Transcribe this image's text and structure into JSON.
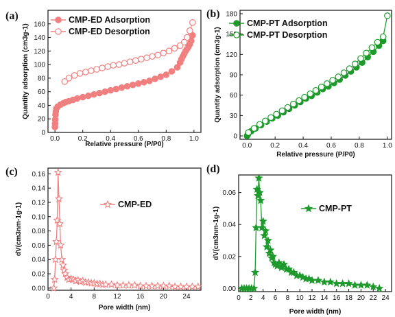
{
  "colors": {
    "ed": "#f08080",
    "pt": "#1e9a2c",
    "axis": "#111111"
  },
  "chart_data": [
    {
      "type": "line",
      "panel_label": "(a)",
      "xlabel": "Relative pressure (P/P0)",
      "ylabel": "Quantity adsorption (cm3g-1)",
      "xlim": [
        -0.05,
        1.05
      ],
      "ylim": [
        0,
        180
      ],
      "xticks": [
        0.0,
        0.2,
        0.4,
        0.6,
        0.8,
        1.0
      ],
      "yticks": [
        0,
        20,
        40,
        60,
        80,
        100,
        120,
        140,
        160
      ],
      "series": [
        {
          "name": "CMP-ED  Adsorption",
          "marker": "circle-filled",
          "x": [
            0.0,
            0.001,
            0.002,
            0.004,
            0.006,
            0.01,
            0.02,
            0.04,
            0.06,
            0.08,
            0.1,
            0.13,
            0.16,
            0.2,
            0.24,
            0.28,
            0.32,
            0.36,
            0.4,
            0.44,
            0.48,
            0.52,
            0.56,
            0.6,
            0.64,
            0.68,
            0.72,
            0.76,
            0.8,
            0.84,
            0.88,
            0.9,
            0.91,
            0.92,
            0.93,
            0.94,
            0.95,
            0.96,
            0.97,
            0.98,
            0.99
          ],
          "y": [
            8,
            13,
            19,
            26,
            31,
            35,
            38,
            41,
            43,
            45,
            46,
            48,
            50,
            52,
            54,
            56,
            58,
            60,
            62,
            64,
            66,
            68,
            70,
            72,
            74,
            76,
            79,
            82,
            85,
            90,
            96,
            103,
            108,
            112,
            116,
            120,
            123,
            126,
            130,
            135,
            143
          ]
        },
        {
          "name": "CMP-ED  Desorption",
          "marker": "circle-open",
          "x": [
            0.99,
            0.97,
            0.95,
            0.93,
            0.9,
            0.86,
            0.82,
            0.78,
            0.74,
            0.7,
            0.66,
            0.62,
            0.58,
            0.54,
            0.5,
            0.46,
            0.42,
            0.38,
            0.34,
            0.3,
            0.26,
            0.22,
            0.18,
            0.14,
            0.1,
            0.07
          ],
          "y": [
            162,
            150,
            140,
            133,
            128,
            124,
            120,
            117,
            114,
            112,
            110,
            108,
            106,
            104,
            102,
            100,
            99,
            97,
            95,
            93,
            91,
            89,
            87,
            84,
            80,
            75
          ]
        }
      ]
    },
    {
      "type": "line",
      "panel_label": "(b)",
      "xlabel": "Relative pressure (P/P0)",
      "ylabel": "Quantity adsorption (cm3g-1)",
      "xlim": [
        -0.05,
        1.03
      ],
      "ylim": [
        -5,
        185
      ],
      "xticks": [
        0.0,
        0.2,
        0.4,
        0.6,
        0.8,
        1.0
      ],
      "yticks": [
        0,
        30,
        60,
        90,
        120,
        150,
        180
      ],
      "series": [
        {
          "name": "CMP-PT  Adsorption",
          "marker": "circle-filled",
          "x": [
            0.0,
            0.005,
            0.01,
            0.03,
            0.06,
            0.1,
            0.14,
            0.18,
            0.22,
            0.26,
            0.3,
            0.34,
            0.38,
            0.42,
            0.46,
            0.5,
            0.54,
            0.58,
            0.62,
            0.66,
            0.7,
            0.74,
            0.78,
            0.82,
            0.86,
            0.9,
            0.94,
            0.97
          ],
          "y": [
            0,
            2,
            4,
            7,
            11,
            16,
            21,
            26,
            30,
            35,
            40,
            45,
            50,
            55,
            59,
            64,
            69,
            73,
            78,
            83,
            89,
            95,
            101,
            108,
            116,
            124,
            133,
            140
          ]
        },
        {
          "name": "CMP-PT  Desorption",
          "marker": "circle-open",
          "x": [
            1.0,
            0.97,
            0.93,
            0.89,
            0.85,
            0.81,
            0.77,
            0.73,
            0.69,
            0.65,
            0.61,
            0.57,
            0.53,
            0.49,
            0.45,
            0.41,
            0.37,
            0.33,
            0.29,
            0.25,
            0.21,
            0.17,
            0.13,
            0.09,
            0.05,
            0.01
          ],
          "y": [
            177,
            146,
            138,
            130,
            122,
            114,
            106,
            99,
            93,
            87,
            82,
            77,
            72,
            67,
            62,
            57,
            52,
            47,
            42,
            37,
            32,
            27,
            22,
            17,
            11,
            5
          ]
        }
      ]
    },
    {
      "type": "line",
      "panel_label": "(c)",
      "xlabel": "Pore width (nm)",
      "ylabel": "dV(cm3nm-1g-1)",
      "xlim": [
        0,
        26.5
      ],
      "ylim": [
        -0.003,
        0.168
      ],
      "xticks": [
        0,
        4,
        8,
        12,
        16,
        20,
        24
      ],
      "yticks": [
        0.0,
        0.02,
        0.04,
        0.06,
        0.08,
        0.1,
        0.12,
        0.14,
        0.16
      ],
      "series": [
        {
          "name": "CMP-ED",
          "marker": "star-open",
          "x": [
            1.0,
            1.15,
            1.3,
            1.45,
            1.6,
            1.75,
            1.9,
            2.05,
            2.2,
            2.4,
            2.6,
            2.8,
            3.0,
            3.3,
            3.6,
            4.0,
            4.4,
            4.8,
            5.2,
            5.6,
            6.0,
            6.5,
            7.0,
            7.5,
            8.0,
            8.5,
            9.0,
            9.5,
            10,
            11,
            12,
            13,
            14,
            15,
            16,
            17,
            18,
            19,
            20,
            21,
            22,
            23,
            24,
            25,
            26
          ],
          "y": [
            0.0,
            0.012,
            0.04,
            0.065,
            0.095,
            0.162,
            0.125,
            0.09,
            0.06,
            0.04,
            0.032,
            0.025,
            0.02,
            0.015,
            0.012,
            0.013,
            0.012,
            0.01,
            0.011,
            0.009,
            0.01,
            0.008,
            0.008,
            0.007,
            0.007,
            0.006,
            0.006,
            0.005,
            0.005,
            0.005,
            0.004,
            0.004,
            0.004,
            0.004,
            0.003,
            0.003,
            0.003,
            0.003,
            0.003,
            0.003,
            0.002,
            0.002,
            0.002,
            0.002,
            0.002
          ]
        }
      ]
    },
    {
      "type": "line",
      "panel_label": "(d)",
      "xlabel": "Pore width (nm)",
      "ylabel": "dV(cm3nm-1g-1)",
      "xlim": [
        0,
        25
      ],
      "ylim": [
        -0.002,
        0.071
      ],
      "xticks": [
        0,
        2,
        4,
        6,
        8,
        10,
        12,
        14,
        16,
        18,
        20,
        22,
        24
      ],
      "yticks": [
        0.0,
        0.02,
        0.04,
        0.06
      ],
      "series": [
        {
          "name": "CMP-PT",
          "marker": "star-filled",
          "x": [
            0.5,
            0.9,
            1.3,
            1.7,
            2.1,
            2.5,
            2.7,
            2.85,
            3.0,
            3.15,
            3.3,
            3.45,
            3.6,
            3.8,
            4.0,
            4.2,
            4.4,
            4.6,
            4.8,
            5.0,
            5.2,
            5.4,
            5.6,
            5.8,
            6.0,
            6.3,
            6.6,
            7.0,
            7.4,
            7.8,
            8.2,
            8.6,
            9.0,
            9.5,
            10,
            10.5,
            11,
            11.5,
            12,
            13,
            14,
            15,
            16,
            17,
            18,
            19,
            20,
            21,
            22,
            23
          ],
          "y": [
            0.0,
            0.0,
            0.0,
            0.0,
            0.0,
            0.0,
            0.01,
            0.038,
            0.062,
            0.058,
            0.069,
            0.06,
            0.055,
            0.038,
            0.042,
            0.033,
            0.036,
            0.026,
            0.03,
            0.022,
            0.024,
            0.019,
            0.02,
            0.016,
            0.015,
            0.014,
            0.016,
            0.013,
            0.015,
            0.012,
            0.012,
            0.01,
            0.01,
            0.008,
            0.008,
            0.007,
            0.006,
            0.006,
            0.005,
            0.005,
            0.004,
            0.004,
            0.003,
            0.003,
            0.003,
            0.002,
            0.002,
            0.002,
            0.001,
            0.0
          ]
        }
      ]
    }
  ]
}
